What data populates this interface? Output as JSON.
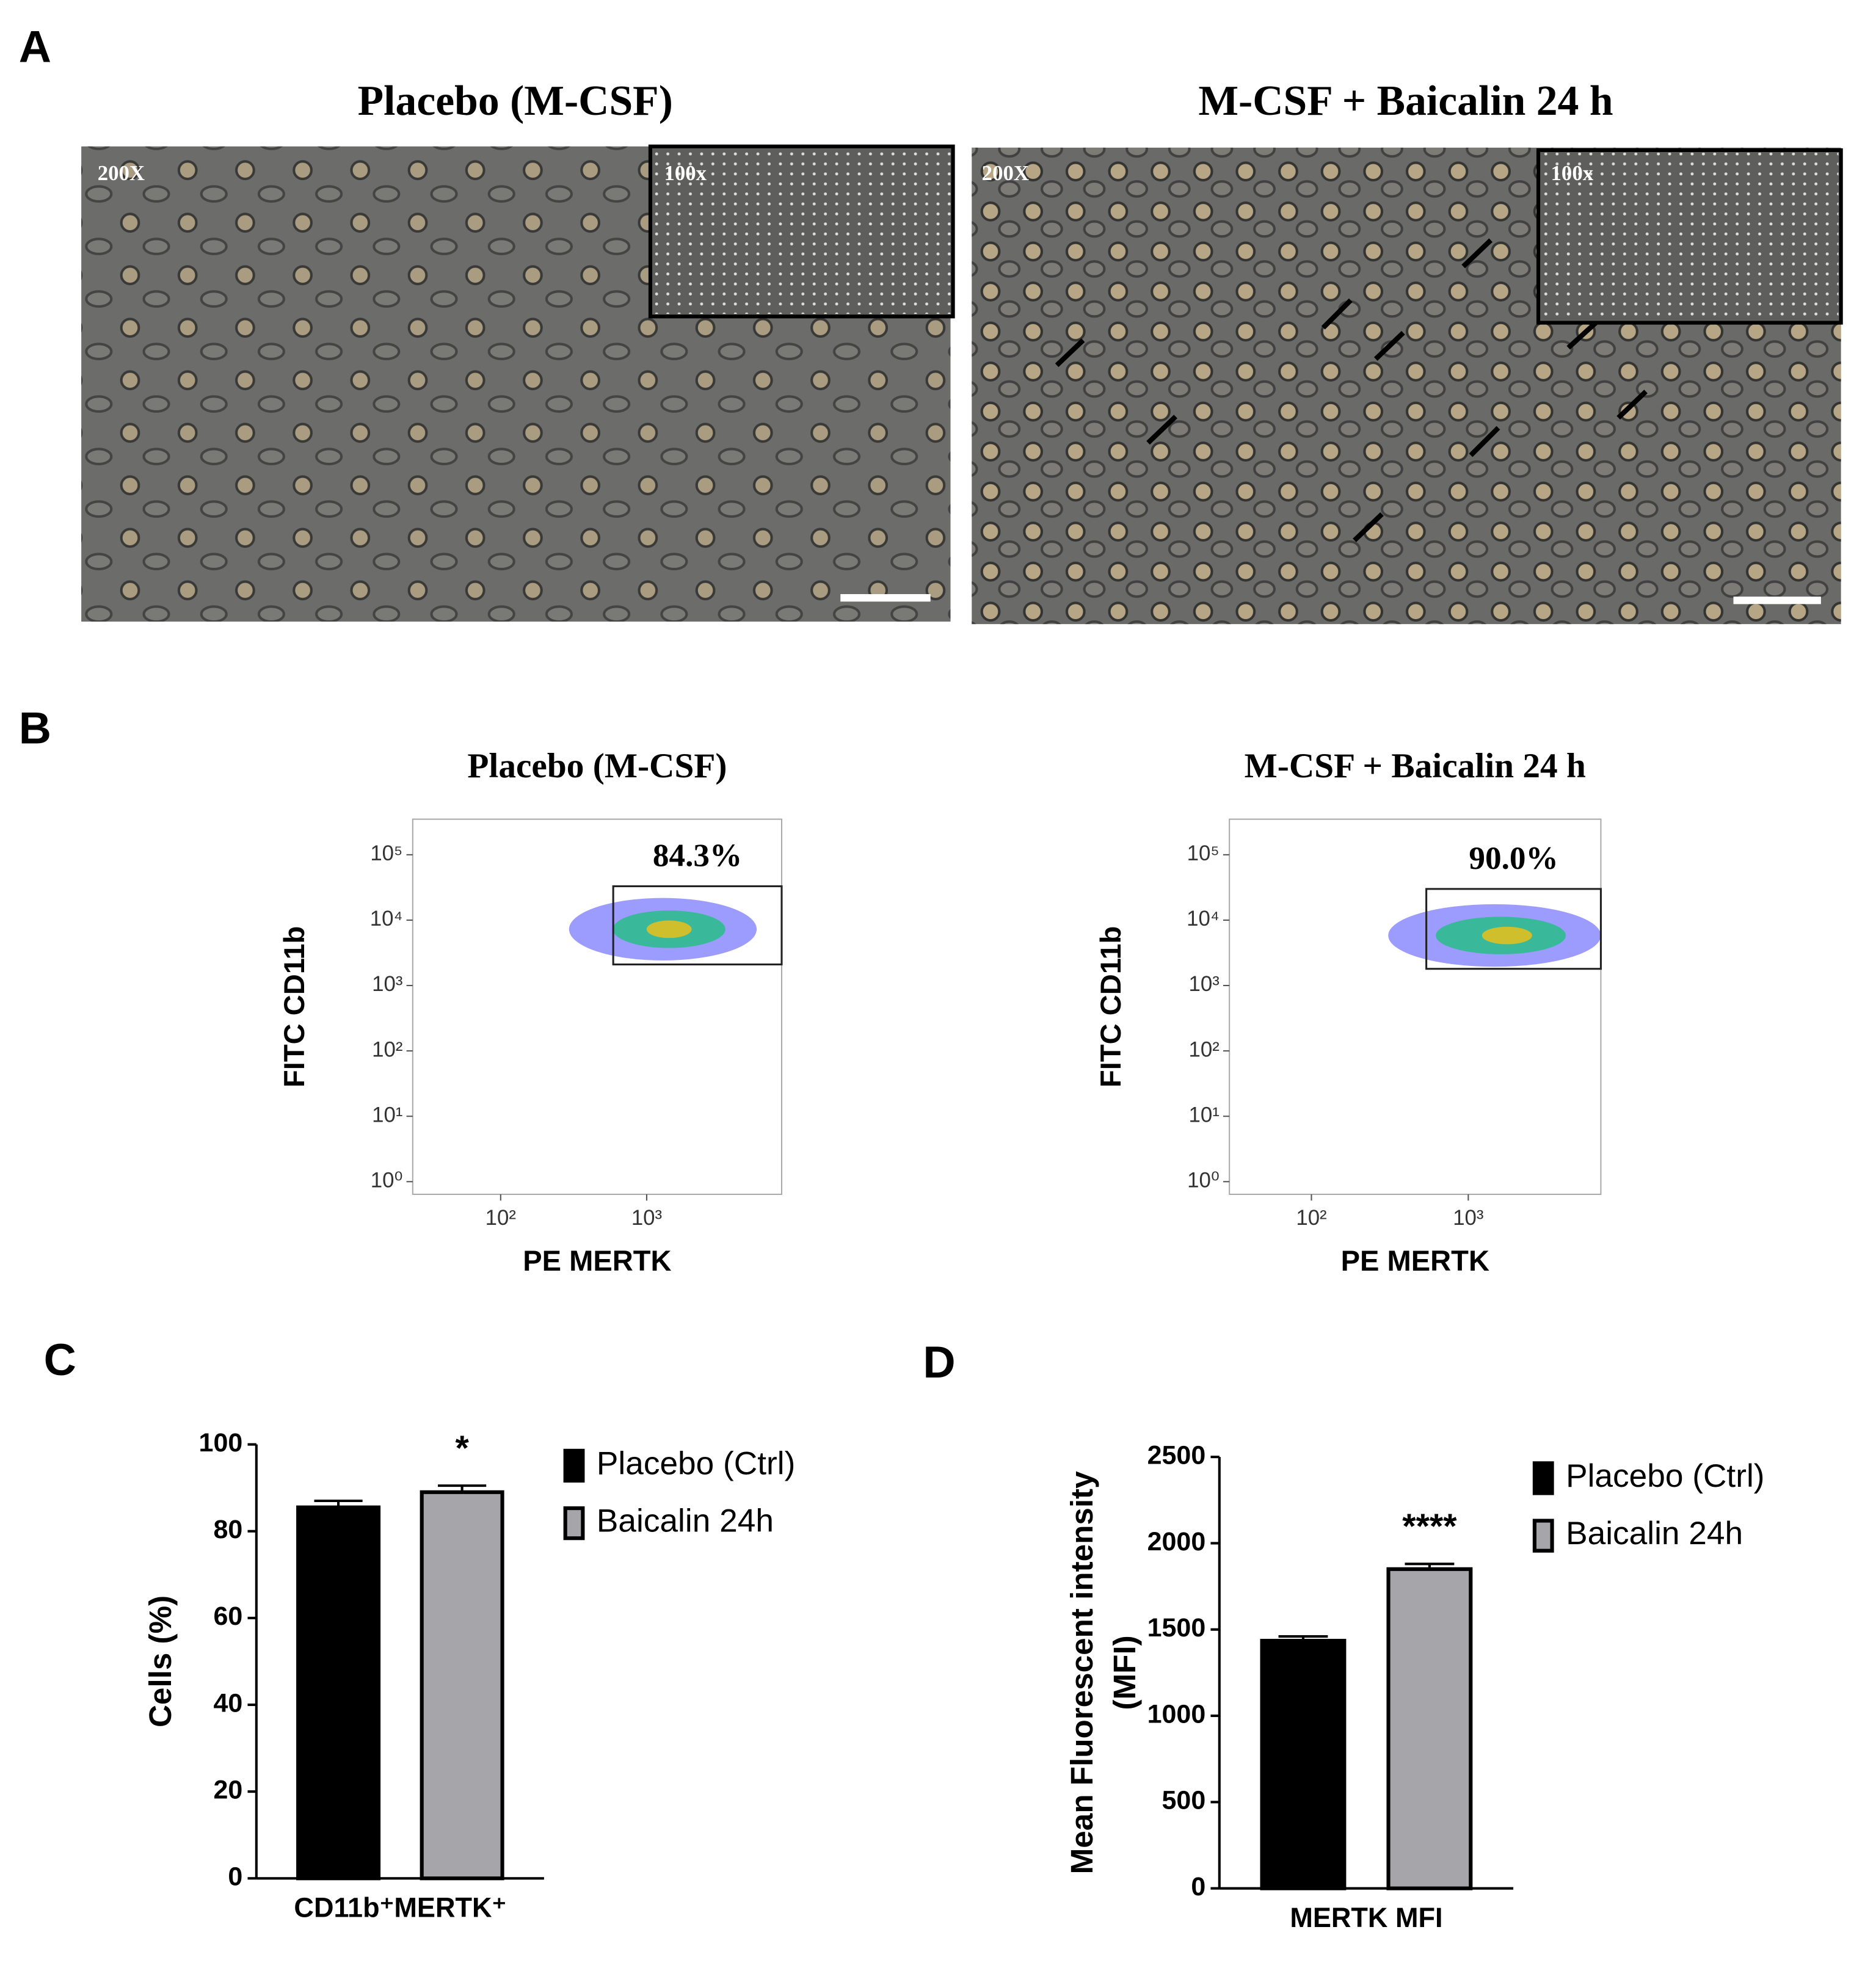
{
  "panel_labels": [
    "A",
    "B",
    "C",
    "D"
  ],
  "images": [
    {
      "title": "Placebo (M-CSF)",
      "magnification": "200X",
      "inset": "100x"
    },
    {
      "title": "M-CSF + Baicalin 24 h",
      "magnification": "200X",
      "inset": "100x"
    }
  ],
  "chart_data": [
    {
      "type": "scatter",
      "title": "Placebo (M-CSF)",
      "x_label": "PE MERTK",
      "y_label": "FITC CD11b",
      "log_scale": true,
      "xlim": [
        25,
        8400
      ],
      "ylim": [
        0.64,
        350000
      ],
      "xticks": [
        {
          "value": 100,
          "label": "10²"
        },
        {
          "value": 1000,
          "label": "10³"
        }
      ],
      "yticks": [
        {
          "value": 1,
          "label": "10⁰"
        },
        {
          "value": 10,
          "label": "10¹"
        },
        {
          "value": 100,
          "label": "10²"
        },
        {
          "value": 1000,
          "label": "10³"
        },
        {
          "value": 10000,
          "label": "10⁴"
        },
        {
          "value": 100000,
          "label": "10⁵"
        }
      ],
      "gate": {
        "x": [
          590,
          8400
        ],
        "y": [
          2100,
          33000
        ]
      },
      "annotation": "84.3%"
    },
    {
      "type": "scatter",
      "title": "M-CSF + Baicalin 24 h",
      "x_label": "PE MERTK",
      "y_label": "FITC CD11b",
      "log_scale": true,
      "xlim": [
        30,
        7000
      ],
      "ylim": [
        0.64,
        350000
      ],
      "xticks": [
        {
          "value": 100,
          "label": "10²"
        },
        {
          "value": 1000,
          "label": "10³"
        }
      ],
      "yticks": [
        {
          "value": 1,
          "label": "10⁰"
        },
        {
          "value": 10,
          "label": "10¹"
        },
        {
          "value": 100,
          "label": "10²"
        },
        {
          "value": 1000,
          "label": "10³"
        },
        {
          "value": 10000,
          "label": "10⁴"
        },
        {
          "value": 100000,
          "label": "10⁵"
        }
      ],
      "gate": {
        "x": [
          540,
          7000
        ],
        "y": [
          1800,
          30000
        ]
      },
      "annotation": "90.0%"
    },
    {
      "type": "bar",
      "y_label": [
        "Cells (%)"
      ],
      "categories": [
        "CD11b⁺MERTK⁺"
      ],
      "series": [
        {
          "name": "Placebo (Ctrl)",
          "color": "#000000",
          "values": [
            85.5
          ],
          "errors": [
            1.5
          ]
        },
        {
          "name": "Baicalin 24h",
          "color": "#a5a5aa",
          "values": [
            89
          ],
          "errors": [
            1.5
          ]
        }
      ],
      "ylim": [
        0,
        100
      ],
      "yticks": [
        0,
        20,
        40,
        60,
        80,
        100
      ],
      "annotation": "*"
    },
    {
      "type": "bar",
      "y_label": [
        "Mean Fluorescent intensity",
        "(MFI)"
      ],
      "categories": [
        "MERTK MFI"
      ],
      "series": [
        {
          "name": "Placebo (Ctrl)",
          "color": "#000000",
          "values": [
            1435
          ],
          "errors": [
            25
          ]
        },
        {
          "name": "Baicalin 24h",
          "color": "#a5a5aa",
          "values": [
            1850
          ],
          "errors": [
            30
          ]
        }
      ],
      "ylim": [
        0,
        2500
      ],
      "yticks": [
        0,
        500,
        1000,
        1500,
        2000,
        2500
      ],
      "annotation": "****"
    }
  ]
}
